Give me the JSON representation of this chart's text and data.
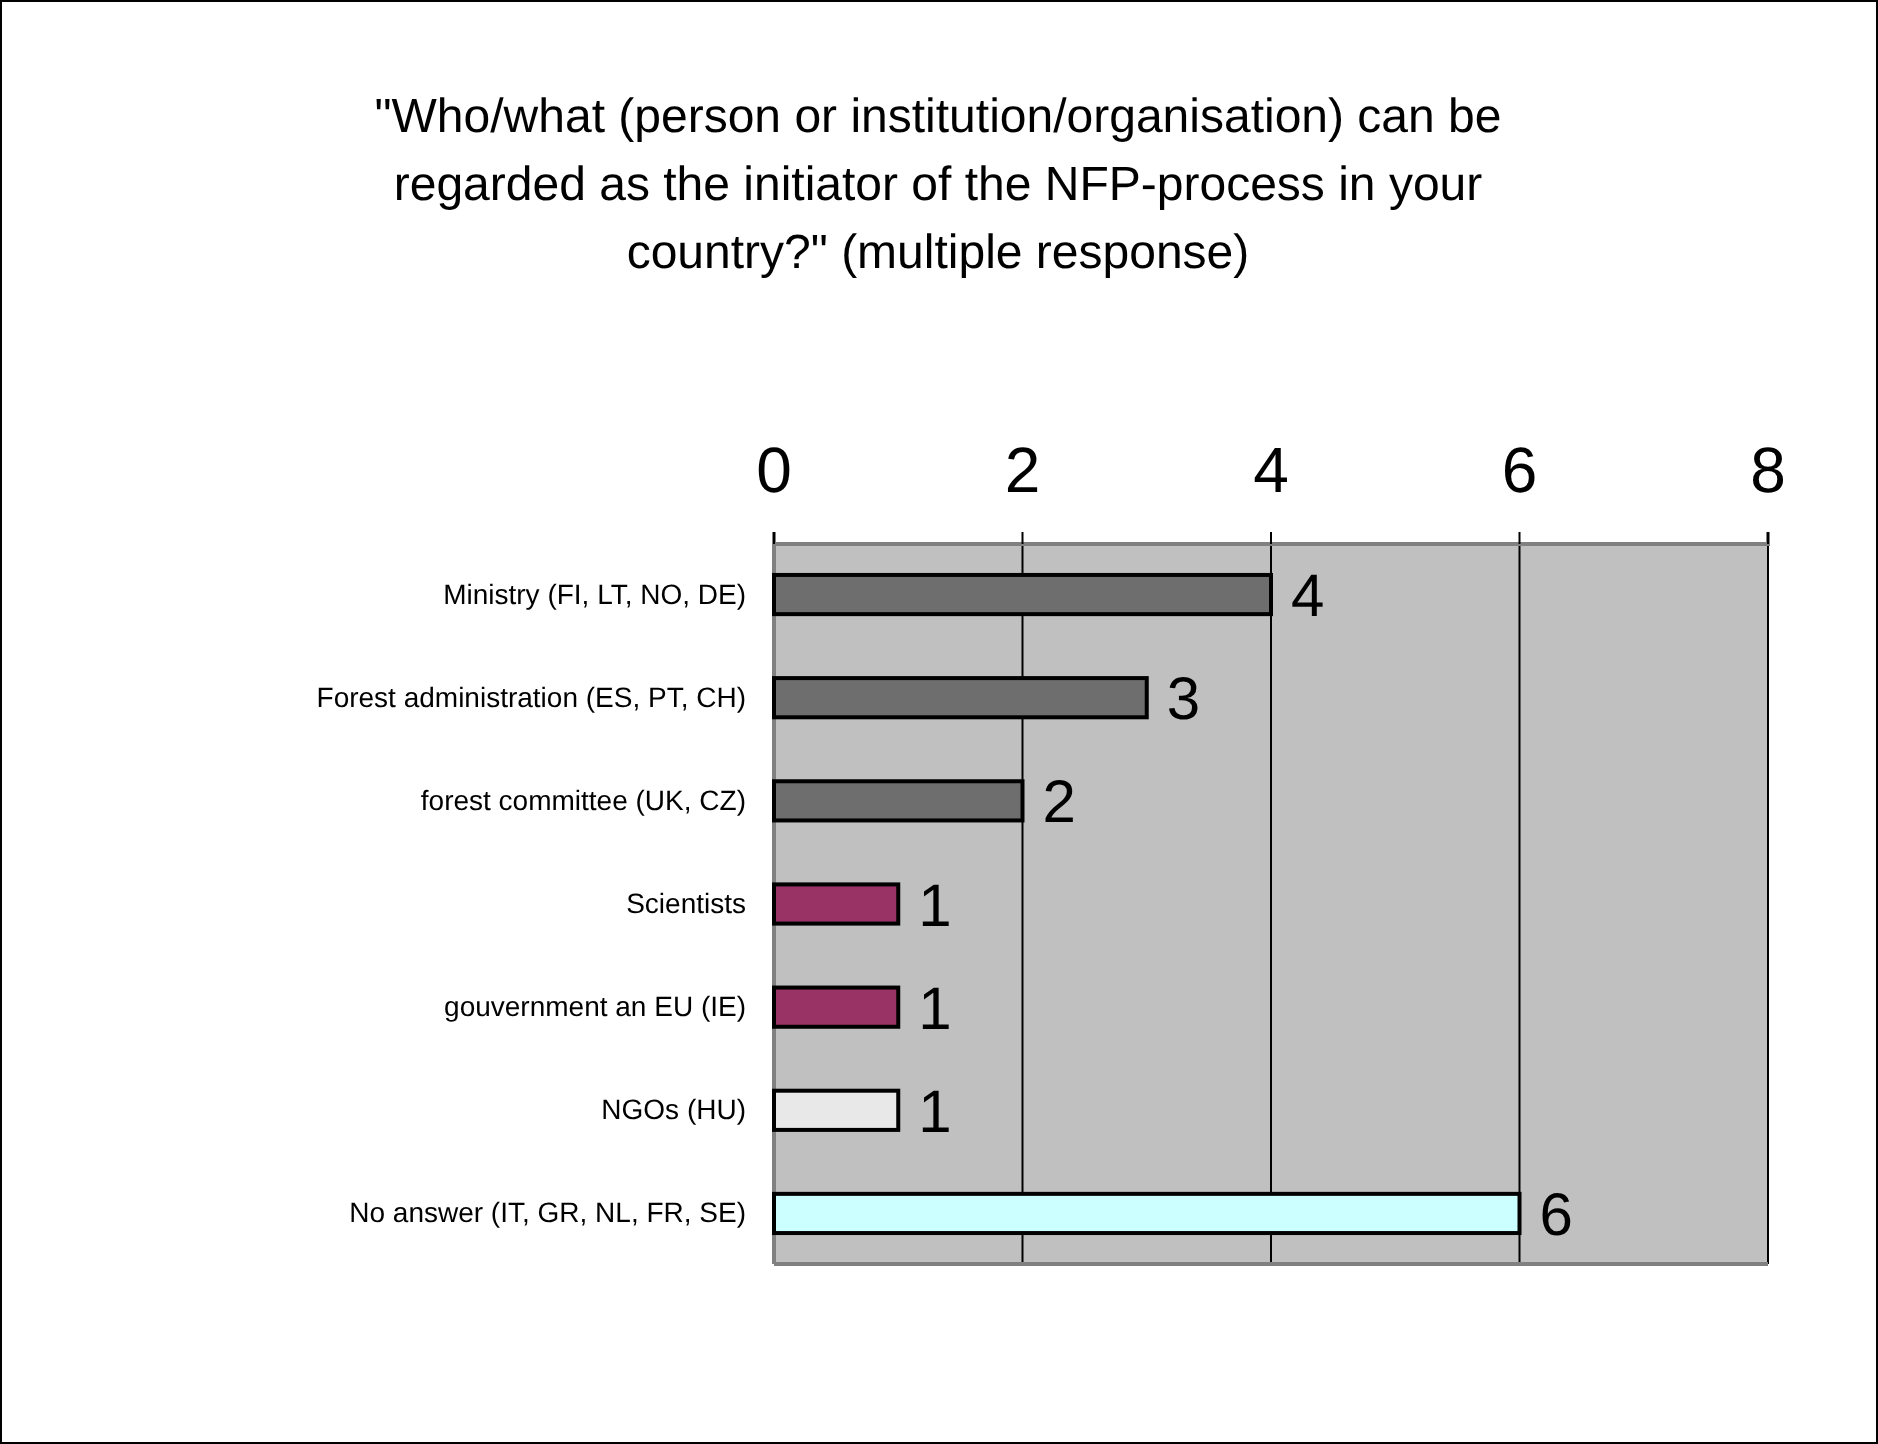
{
  "chart_data": {
    "type": "bar",
    "orientation": "horizontal",
    "title": "\"Who/what (person or institution/organisation) can be regarded as the initiator of the NFP-process in your country?\" (multiple response)",
    "categories": [
      "Ministry (FI, LT, NO, DE)",
      "Forest administration (ES, PT, CH)",
      "forest committee (UK, CZ)",
      "Scientists",
      "gouvernment an EU (IE)",
      "NGOs (HU)",
      "No answer (IT, GR, NL, FR, SE)"
    ],
    "values": [
      4,
      3,
      2,
      1,
      1,
      1,
      6
    ],
    "colors": [
      "#6e6e6e",
      "#6e6e6e",
      "#6e6e6e",
      "#993366",
      "#993366",
      "#e8e8e8",
      "#ccffff"
    ],
    "xlim": [
      0,
      8
    ],
    "xticks": [
      0,
      2,
      4,
      6,
      8
    ],
    "grid": "x",
    "data_labels": true
  }
}
